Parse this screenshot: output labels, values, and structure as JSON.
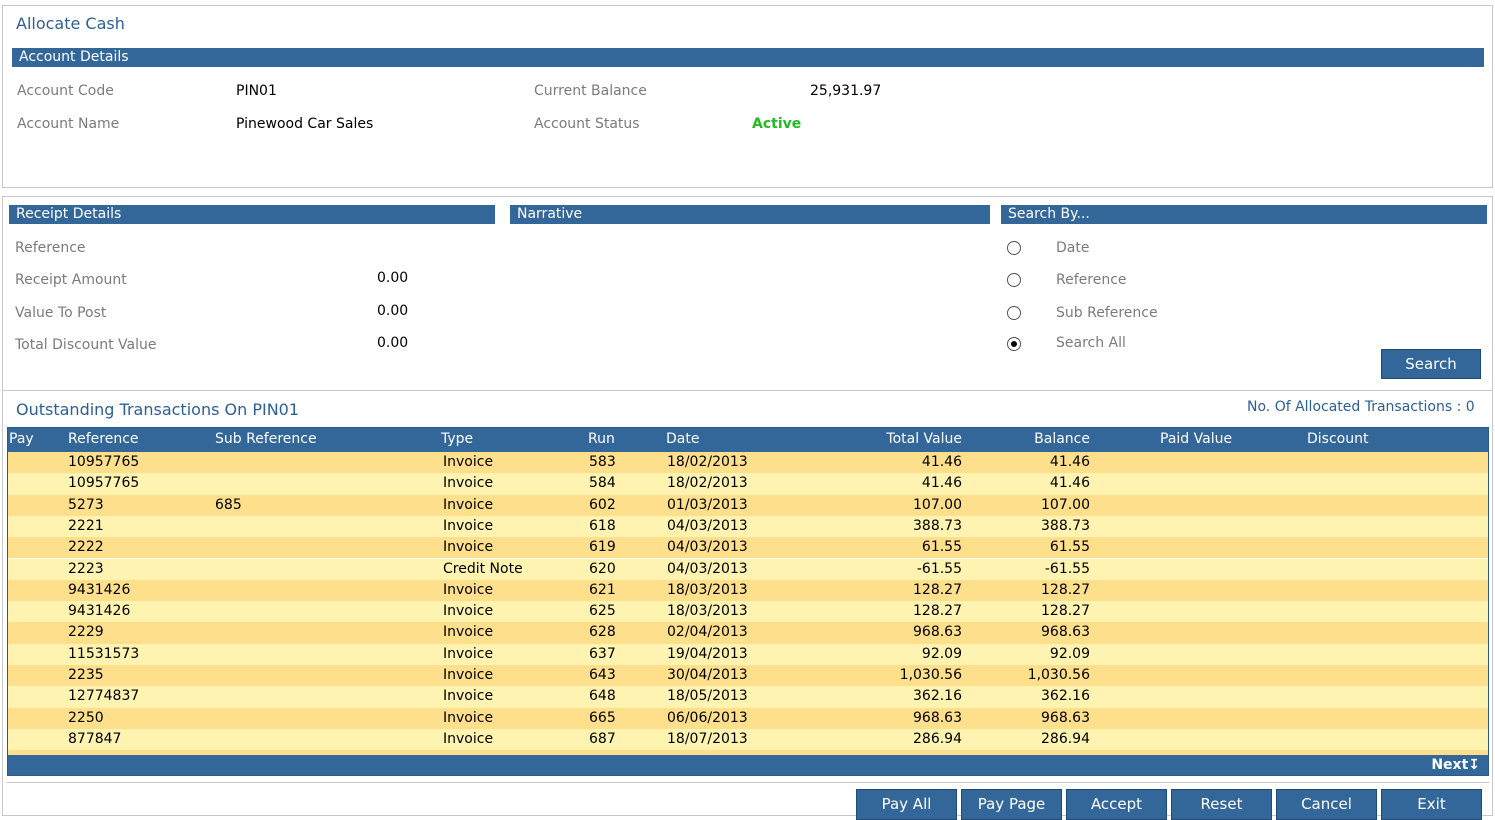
{
  "page": {
    "title": "Allocate Cash"
  },
  "account_details": {
    "header": "Account Details",
    "code_label": "Account Code",
    "code_value": "PIN01",
    "name_label": "Account Name",
    "name_value": "Pinewood Car Sales",
    "balance_label": "Current Balance",
    "balance_value": "25,931.97",
    "status_label": "Account Status",
    "status_value": "Active"
  },
  "receipt_details": {
    "header": "Receipt Details",
    "reference_label": "Reference",
    "receipt_amount_label": "Receipt Amount",
    "receipt_amount_value": "0.00",
    "value_to_post_label": "Value To Post",
    "value_to_post_value": "0.00",
    "total_discount_label": "Total Discount Value",
    "total_discount_value": "0.00"
  },
  "narrative": {
    "header": "Narrative"
  },
  "search_by": {
    "header": "Search By...",
    "options": [
      "Date",
      "Reference",
      "Sub Reference",
      "Search All"
    ],
    "selected": "Search All",
    "search_button": "Search"
  },
  "transactions": {
    "title": "Outstanding Transactions On PIN01",
    "allocated_label": "No. Of Allocated Transactions :",
    "allocated_count": "0",
    "columns": [
      "Pay",
      "Reference",
      "Sub Reference",
      "Type",
      "Run",
      "Date",
      "Total Value",
      "Balance",
      "Paid Value",
      "Discount"
    ],
    "rows": [
      [
        "",
        "10957765",
        "",
        "Invoice",
        "583",
        "18/02/2013",
        "41.46",
        "41.46",
        "",
        ""
      ],
      [
        "",
        "10957765",
        "",
        "Invoice",
        "584",
        "18/02/2013",
        "41.46",
        "41.46",
        "",
        ""
      ],
      [
        "",
        "5273",
        "685",
        "Invoice",
        "602",
        "01/03/2013",
        "107.00",
        "107.00",
        "",
        ""
      ],
      [
        "",
        "2221",
        "",
        "Invoice",
        "618",
        "04/03/2013",
        "388.73",
        "388.73",
        "",
        ""
      ],
      [
        "",
        "2222",
        "",
        "Invoice",
        "619",
        "04/03/2013",
        "61.55",
        "61.55",
        "",
        ""
      ],
      [
        "",
        "2223",
        "",
        "Credit Note",
        "620",
        "04/03/2013",
        "-61.55",
        "-61.55",
        "",
        ""
      ],
      [
        "",
        "9431426",
        "",
        "Invoice",
        "621",
        "18/03/2013",
        "128.27",
        "128.27",
        "",
        ""
      ],
      [
        "",
        "9431426",
        "",
        "Invoice",
        "625",
        "18/03/2013",
        "128.27",
        "128.27",
        "",
        ""
      ],
      [
        "",
        "2229",
        "",
        "Invoice",
        "628",
        "02/04/2013",
        "968.63",
        "968.63",
        "",
        ""
      ],
      [
        "",
        "11531573",
        "",
        "Invoice",
        "637",
        "19/04/2013",
        "92.09",
        "92.09",
        "",
        ""
      ],
      [
        "",
        "2235",
        "",
        "Invoice",
        "643",
        "30/04/2013",
        "1,030.56",
        "1,030.56",
        "",
        ""
      ],
      [
        "",
        "12774837",
        "",
        "Invoice",
        "648",
        "18/05/2013",
        "362.16",
        "362.16",
        "",
        ""
      ],
      [
        "",
        "2250",
        "",
        "Invoice",
        "665",
        "06/06/2013",
        "968.63",
        "968.63",
        "",
        ""
      ],
      [
        "",
        "877847",
        "",
        "Invoice",
        "687",
        "18/07/2013",
        "286.94",
        "286.94",
        "",
        ""
      ]
    ],
    "next_label": "Next",
    "next_icon": "arrow-down-icon",
    "row_colors": [
      "#fedf8c",
      "#fef3b0"
    ]
  },
  "actions": [
    "Pay All",
    "Pay Page",
    "Accept",
    "Reset",
    "Cancel",
    "Exit"
  ]
}
